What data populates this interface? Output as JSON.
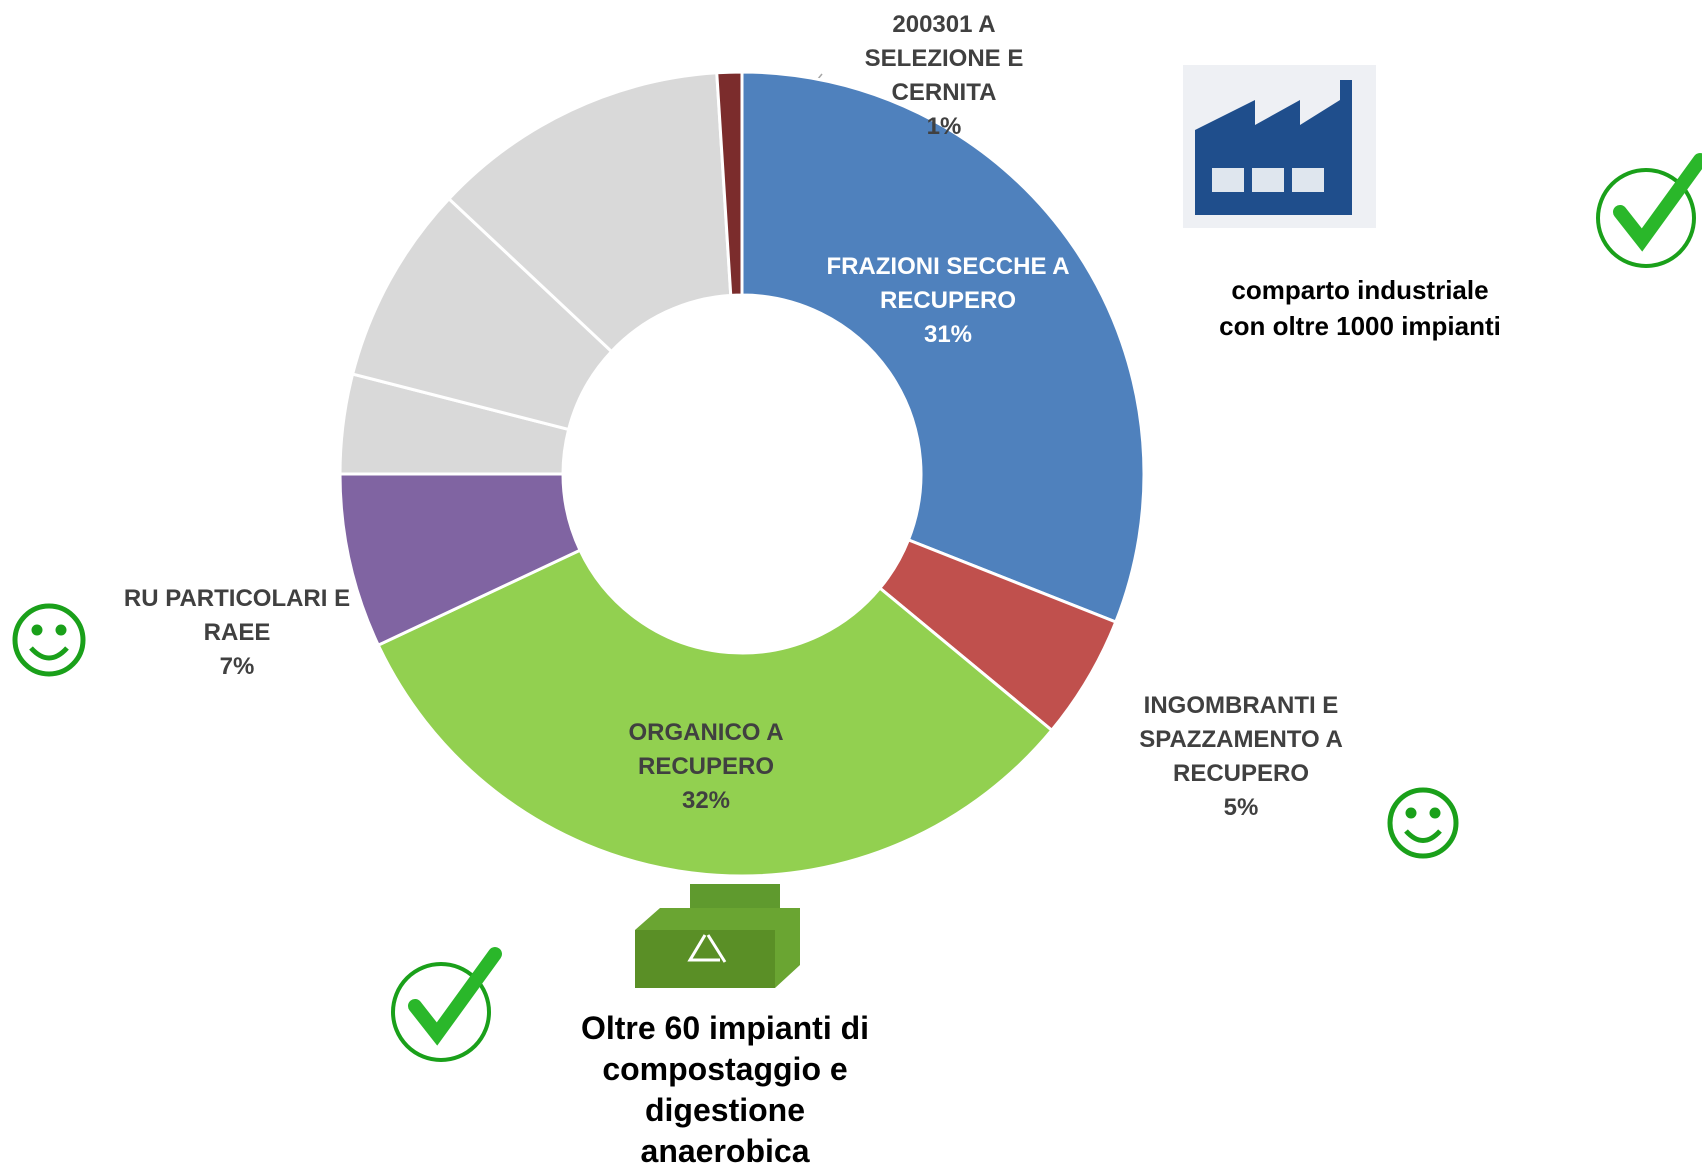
{
  "chart_data": {
    "type": "donut",
    "categories": [
      "FRAZIONI SECCHE A RECUPERO",
      "INGOMBRANTI E SPAZZAMENTO A RECUPERO",
      "ORGANICO A RECUPERO",
      "RU PARTICOLARI E RAEE",
      null,
      null,
      null,
      "200301 A SELEZIONE E CERNITA"
    ],
    "values": [
      31,
      5,
      32,
      7,
      4,
      8,
      12,
      1
    ],
    "value_labels": [
      "31%",
      "5%",
      "32%",
      "7%",
      null,
      null,
      null,
      "1%"
    ],
    "colors": [
      "#4f81bd",
      "#c0504d",
      "#92d050",
      "#8064a2",
      "#d9d9d9",
      "#d9d9d9",
      "#d9d9d9",
      "#7b2c2c"
    ],
    "annotations": [
      [
        "comparto industriale",
        "con oltre 1000 impianti"
      ],
      [
        "Oltre 60 impianti di",
        "compostaggio e",
        "digestione",
        "anaerobica"
      ]
    ]
  }
}
